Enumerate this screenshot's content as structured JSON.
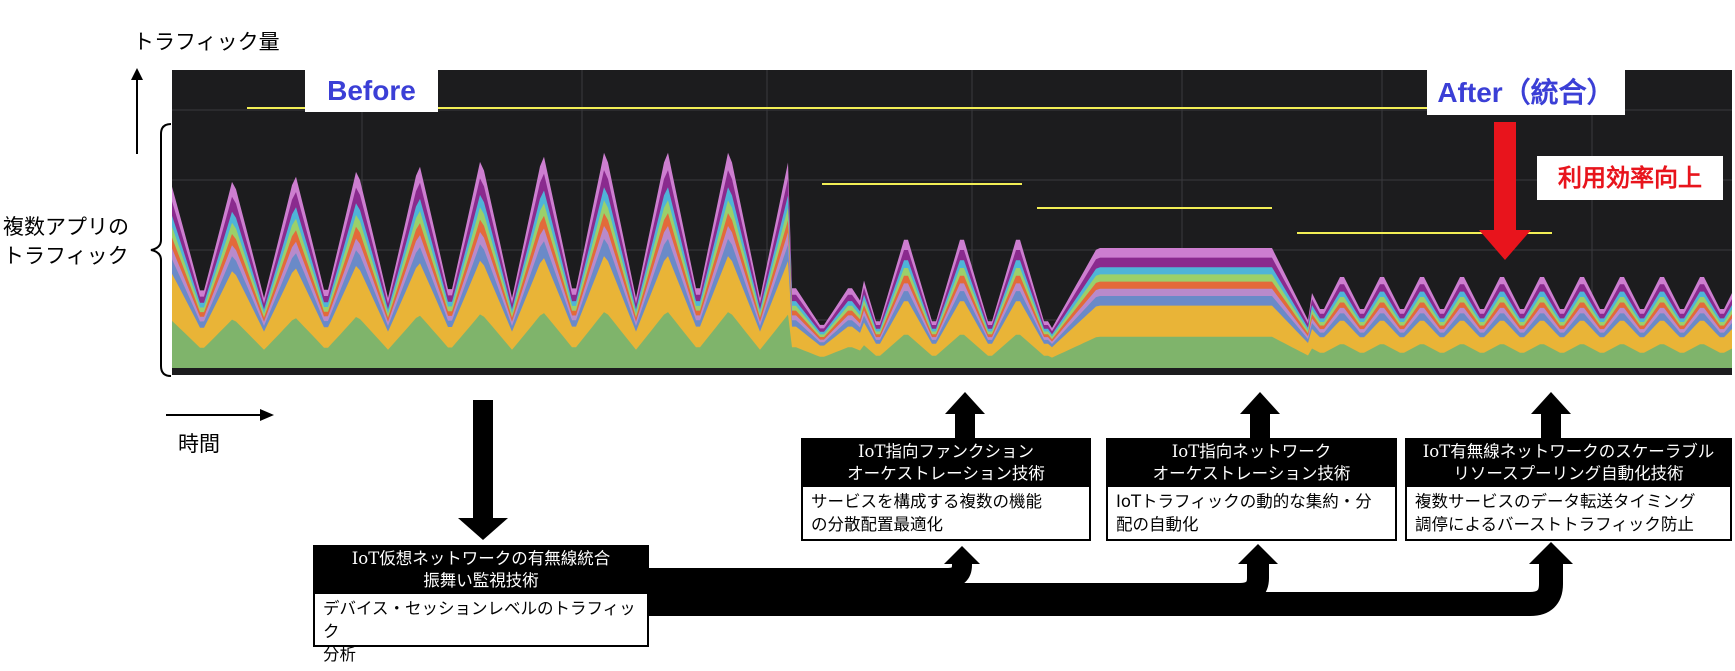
{
  "axes": {
    "y_label": "トラフィック量",
    "x_label": "時間",
    "brace_label": [
      "複数アプリの",
      "トラフィック"
    ]
  },
  "tags": {
    "before": "Before",
    "after": "After（統合）",
    "efficiency": "利用効率向上"
  },
  "colors": {
    "panel": "#1c1c1e",
    "band_base": "#7fb46b",
    "band_2": "#e9b437",
    "band_top": "#cd7ed0",
    "peak_line": "#f2ee55",
    "accent_text": "#3b3fd6",
    "arrow_red": "#e8141c"
  },
  "boxes": [
    {
      "title": [
        "IoT仮想ネットワークの有無線統合",
        "振舞い監視技術"
      ],
      "body": [
        "デバイス・セッションレベルのトラフィック",
        "分析"
      ]
    },
    {
      "title": [
        "IoT指向ファンクション",
        "オーケストレーション技術"
      ],
      "body": [
        "サービスを構成する複数の機能",
        "の分散配置最適化"
      ]
    },
    {
      "title": [
        "IoT指向ネットワーク",
        "オーケストレーション技術"
      ],
      "body": [
        "IoTトラフィックの動的な集約・分",
        "配の自動化"
      ]
    },
    {
      "title": [
        "IoT有無線ネットワークのスケーラブル",
        "リソースプーリング自動化技術"
      ],
      "body": [
        "複数サービスのデータ転送タイミング",
        "調停によるバーストトラフィック防止"
      ]
    }
  ]
}
